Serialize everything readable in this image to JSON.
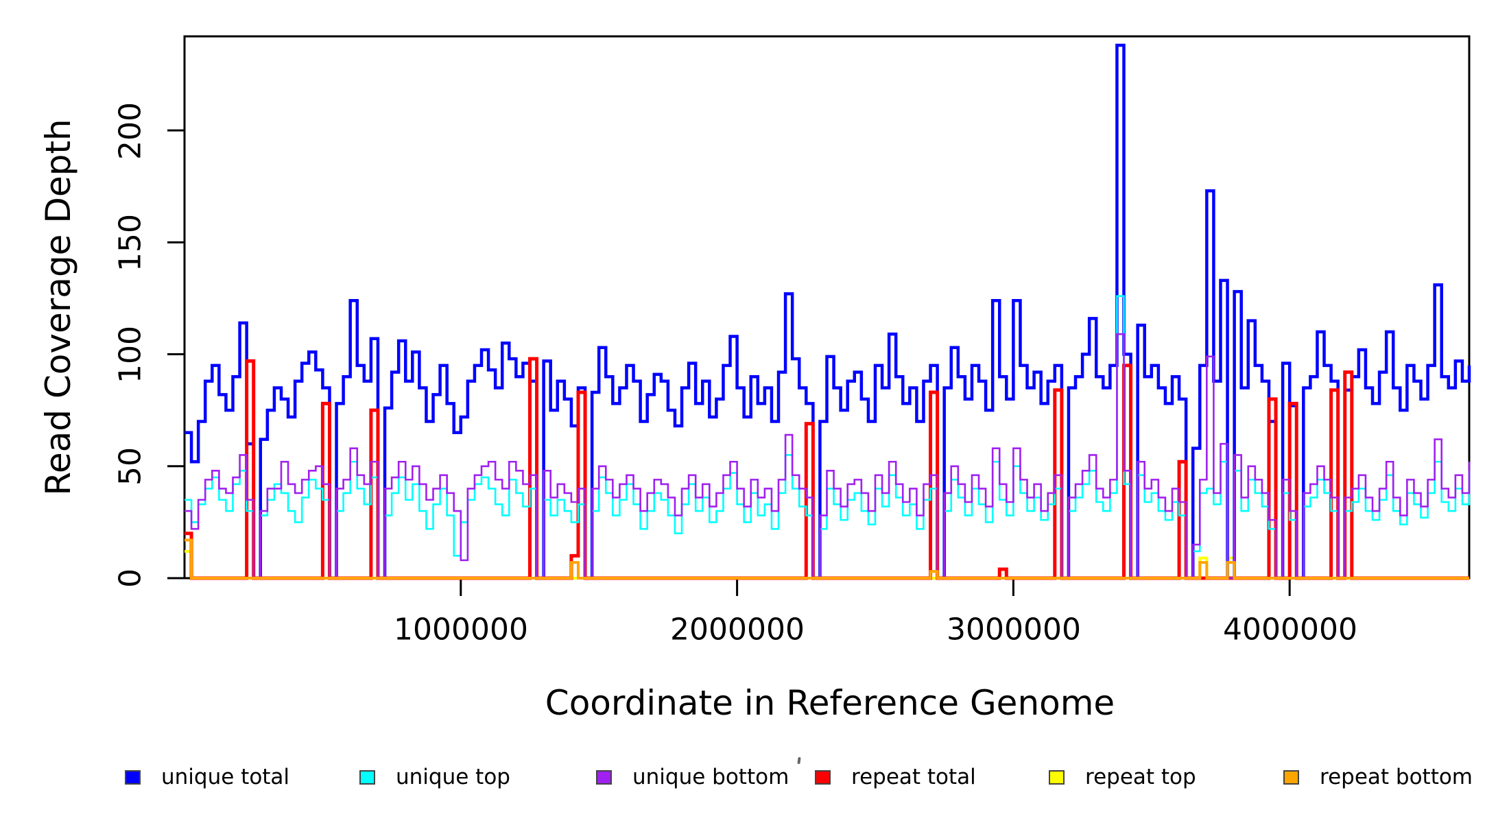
{
  "chart_data": {
    "type": "line",
    "subtype": "step-coverage-plot",
    "title": "",
    "xlabel": "Coordinate in Reference Genome",
    "ylabel": "Read Coverage Depth",
    "xlim": [
      0,
      4650000
    ],
    "ylim": [
      0,
      242
    ],
    "x_step": 25000,
    "grid": "off",
    "legend_position": "bottom",
    "x_ticks": [
      1000000,
      2000000,
      3000000,
      4000000
    ],
    "x_tick_labels": [
      "1000000",
      "2000000",
      "3000000",
      "4000000"
    ],
    "y_ticks": [
      0,
      50,
      100,
      150,
      200
    ],
    "y_tick_labels": [
      "0",
      "50",
      "100",
      "150",
      "200"
    ],
    "draw_order": [
      "repeat top",
      "unique total",
      "repeat total",
      "unique top",
      "unique bottom",
      "repeat bottom"
    ],
    "series": [
      {
        "name": "unique total",
        "color": "#0000ff",
        "width": 4.5,
        "values": [
          65,
          52,
          70,
          88,
          95,
          82,
          75,
          90,
          114,
          60,
          0,
          62,
          75,
          85,
          80,
          72,
          88,
          96,
          101,
          93,
          85,
          0,
          78,
          90,
          124,
          95,
          88,
          107,
          0,
          76,
          92,
          106,
          88,
          101,
          85,
          70,
          82,
          95,
          78,
          65,
          72,
          88,
          95,
          102,
          93,
          85,
          105,
          98,
          90,
          96,
          88,
          0,
          97,
          75,
          88,
          80,
          68,
          85,
          0,
          83,
          103,
          90,
          78,
          85,
          95,
          88,
          70,
          82,
          91,
          88,
          75,
          68,
          85,
          96,
          78,
          88,
          72,
          80,
          95,
          108,
          85,
          72,
          90,
          78,
          85,
          70,
          92,
          127,
          98,
          85,
          78,
          0,
          70,
          99,
          85,
          75,
          88,
          92,
          80,
          70,
          95,
          85,
          109,
          90,
          78,
          85,
          70,
          88,
          95,
          0,
          85,
          103,
          90,
          80,
          95,
          88,
          75,
          124,
          90,
          80,
          124,
          95,
          85,
          92,
          78,
          88,
          95,
          0,
          85,
          90,
          100,
          116,
          90,
          85,
          95,
          238,
          100,
          0,
          113,
          90,
          95,
          85,
          78,
          90,
          80,
          0,
          58,
          95,
          173,
          88,
          133,
          0,
          128,
          85,
          115,
          95,
          88,
          70,
          0,
          96,
          77,
          0,
          85,
          90,
          110,
          95,
          88,
          0,
          84,
          90,
          102,
          85,
          78,
          92,
          110,
          85,
          75,
          95,
          88,
          80,
          95,
          131,
          90,
          85,
          97,
          88,
          95
        ]
      },
      {
        "name": "unique top",
        "color": "#00ffff",
        "width": 2.6,
        "values": [
          35,
          25,
          33,
          40,
          45,
          35,
          30,
          42,
          48,
          30,
          0,
          28,
          35,
          42,
          38,
          30,
          25,
          36,
          44,
          40,
          35,
          0,
          30,
          38,
          52,
          40,
          33,
          45,
          0,
          28,
          38,
          45,
          35,
          42,
          30,
          22,
          33,
          40,
          28,
          10,
          25,
          35,
          42,
          45,
          40,
          33,
          28,
          44,
          38,
          32,
          40,
          0,
          35,
          28,
          35,
          30,
          25,
          33,
          0,
          30,
          45,
          38,
          28,
          35,
          42,
          33,
          22,
          30,
          38,
          35,
          28,
          20,
          33,
          42,
          30,
          36,
          25,
          30,
          40,
          47,
          33,
          25,
          38,
          28,
          33,
          22,
          38,
          55,
          40,
          32,
          28,
          0,
          22,
          40,
          33,
          26,
          35,
          38,
          30,
          24,
          40,
          32,
          46,
          36,
          28,
          33,
          22,
          35,
          40,
          0,
          30,
          44,
          36,
          28,
          40,
          33,
          25,
          52,
          35,
          28,
          50,
          38,
          30,
          36,
          26,
          33,
          40,
          0,
          30,
          36,
          42,
          48,
          34,
          30,
          38,
          126,
          42,
          0,
          46,
          34,
          38,
          30,
          26,
          34,
          28,
          0,
          12,
          38,
          40,
          33,
          52,
          0,
          48,
          30,
          44,
          38,
          32,
          22,
          0,
          38,
          26,
          0,
          32,
          36,
          44,
          38,
          30,
          0,
          30,
          34,
          40,
          30,
          26,
          35,
          46,
          30,
          24,
          38,
          33,
          27,
          38,
          52,
          34,
          30,
          40,
          33,
          48
        ]
      },
      {
        "name": "unique bottom",
        "color": "#a020f0",
        "width": 2.6,
        "values": [
          30,
          22,
          35,
          44,
          48,
          40,
          38,
          45,
          55,
          35,
          0,
          30,
          40,
          40,
          52,
          42,
          38,
          44,
          48,
          50,
          42,
          0,
          40,
          44,
          58,
          46,
          42,
          52,
          0,
          40,
          45,
          52,
          44,
          50,
          42,
          35,
          40,
          46,
          38,
          30,
          8,
          40,
          46,
          50,
          52,
          44,
          40,
          52,
          48,
          42,
          46,
          0,
          48,
          36,
          42,
          38,
          34,
          40,
          0,
          40,
          50,
          44,
          36,
          42,
          46,
          40,
          30,
          38,
          44,
          42,
          36,
          28,
          40,
          46,
          36,
          42,
          32,
          38,
          46,
          52,
          40,
          32,
          44,
          36,
          40,
          30,
          44,
          64,
          46,
          40,
          36,
          0,
          28,
          48,
          40,
          32,
          42,
          44,
          38,
          30,
          46,
          38,
          52,
          42,
          34,
          40,
          28,
          42,
          46,
          0,
          38,
          50,
          42,
          34,
          46,
          40,
          32,
          58,
          42,
          34,
          58,
          44,
          36,
          42,
          30,
          38,
          46,
          0,
          36,
          42,
          48,
          55,
          40,
          36,
          44,
          109,
          48,
          0,
          52,
          40,
          44,
          36,
          30,
          40,
          34,
          0,
          15,
          44,
          99,
          38,
          60,
          0,
          55,
          36,
          50,
          44,
          38,
          26,
          0,
          44,
          30,
          0,
          38,
          42,
          50,
          44,
          36,
          0,
          36,
          40,
          46,
          36,
          30,
          40,
          52,
          36,
          28,
          44,
          38,
          32,
          44,
          62,
          40,
          36,
          46,
          38,
          52
        ]
      },
      {
        "name": "repeat total",
        "color": "#ff0000",
        "width": 5,
        "values": [
          20,
          0,
          0,
          0,
          0,
          0,
          0,
          0,
          0,
          97,
          0,
          0,
          0,
          0,
          0,
          0,
          0,
          0,
          0,
          0,
          78,
          0,
          0,
          0,
          0,
          0,
          0,
          75,
          0,
          0,
          0,
          0,
          0,
          0,
          0,
          0,
          0,
          0,
          0,
          0,
          0,
          0,
          0,
          0,
          0,
          0,
          0,
          0,
          0,
          0,
          98,
          0,
          0,
          0,
          0,
          0,
          10,
          83,
          0,
          0,
          0,
          0,
          0,
          0,
          0,
          0,
          0,
          0,
          0,
          0,
          0,
          0,
          0,
          0,
          0,
          0,
          0,
          0,
          0,
          0,
          0,
          0,
          0,
          0,
          0,
          0,
          0,
          0,
          0,
          0,
          69,
          0,
          0,
          0,
          0,
          0,
          0,
          0,
          0,
          0,
          0,
          0,
          0,
          0,
          0,
          0,
          0,
          0,
          83,
          0,
          0,
          0,
          0,
          0,
          0,
          0,
          0,
          0,
          4,
          0,
          0,
          0,
          0,
          0,
          0,
          0,
          84,
          0,
          0,
          0,
          0,
          0,
          0,
          0,
          0,
          0,
          95,
          0,
          0,
          0,
          0,
          0,
          0,
          0,
          52,
          0,
          0,
          0,
          0,
          0,
          0,
          0,
          0,
          0,
          0,
          0,
          0,
          80,
          0,
          0,
          78,
          0,
          0,
          0,
          0,
          0,
          84,
          0,
          92,
          0,
          0,
          0,
          0,
          0,
          0,
          0,
          0,
          0,
          0,
          0,
          0,
          0,
          0,
          0,
          0,
          0,
          0
        ]
      },
      {
        "name": "repeat top",
        "color": "#ffff00",
        "width": 4,
        "values": [
          12,
          0,
          0,
          0,
          0,
          0,
          0,
          0,
          0,
          0,
          0,
          0,
          0,
          0,
          0,
          0,
          0,
          0,
          0,
          0,
          0,
          0,
          0,
          0,
          0,
          0,
          0,
          0,
          0,
          0,
          0,
          0,
          0,
          0,
          0,
          0,
          0,
          0,
          0,
          0,
          0,
          0,
          0,
          0,
          0,
          0,
          0,
          0,
          0,
          0,
          0,
          0,
          0,
          0,
          0,
          0,
          0,
          0,
          0,
          0,
          0,
          0,
          0,
          0,
          0,
          0,
          0,
          0,
          0,
          0,
          0,
          0,
          0,
          0,
          0,
          0,
          0,
          0,
          0,
          0,
          0,
          0,
          0,
          0,
          0,
          0,
          0,
          0,
          0,
          0,
          0,
          0,
          0,
          0,
          0,
          0,
          0,
          0,
          0,
          0,
          0,
          0,
          0,
          0,
          0,
          0,
          0,
          0,
          0,
          0,
          0,
          0,
          0,
          0,
          0,
          0,
          0,
          0,
          0,
          0,
          0,
          0,
          0,
          0,
          0,
          0,
          0,
          0,
          0,
          0,
          0,
          0,
          0,
          0,
          0,
          0,
          0,
          0,
          0,
          0,
          0,
          0,
          0,
          0,
          0,
          0,
          0,
          9,
          0,
          0,
          0,
          9,
          0,
          0,
          0,
          0,
          0,
          0,
          0,
          0,
          0,
          0,
          0,
          0,
          0,
          0,
          0,
          0,
          0,
          0,
          0,
          0,
          0,
          0,
          0,
          0,
          0,
          0,
          0,
          0,
          0,
          0,
          0,
          0,
          0,
          0,
          0
        ]
      },
      {
        "name": "repeat bottom",
        "color": "#ffa500",
        "width": 4,
        "values": [
          17,
          0,
          0,
          0,
          0,
          0,
          0,
          0,
          0,
          0,
          0,
          0,
          0,
          0,
          0,
          0,
          0,
          0,
          0,
          0,
          0,
          0,
          0,
          0,
          0,
          0,
          0,
          0,
          0,
          0,
          0,
          0,
          0,
          0,
          0,
          0,
          0,
          0,
          0,
          0,
          0,
          0,
          0,
          0,
          0,
          0,
          0,
          0,
          0,
          0,
          0,
          0,
          0,
          0,
          0,
          0,
          7,
          0,
          0,
          0,
          0,
          0,
          0,
          0,
          0,
          0,
          0,
          0,
          0,
          0,
          0,
          0,
          0,
          0,
          0,
          0,
          0,
          0,
          0,
          0,
          0,
          0,
          0,
          0,
          0,
          0,
          0,
          0,
          0,
          0,
          0,
          0,
          0,
          0,
          0,
          0,
          0,
          0,
          0,
          0,
          0,
          0,
          0,
          0,
          0,
          0,
          0,
          0,
          3,
          0,
          0,
          0,
          0,
          0,
          0,
          0,
          0,
          0,
          0,
          0,
          0,
          0,
          0,
          0,
          0,
          0,
          0,
          0,
          0,
          0,
          0,
          0,
          0,
          0,
          0,
          0,
          0,
          0,
          0,
          0,
          0,
          0,
          0,
          0,
          0,
          0,
          0,
          7,
          0,
          0,
          0,
          7,
          0,
          0,
          0,
          0,
          0,
          0,
          0,
          0,
          0,
          0,
          0,
          0,
          0,
          0,
          0,
          0,
          0,
          0,
          0,
          0,
          0,
          0,
          0,
          0,
          0,
          0,
          0,
          0,
          0,
          0,
          0,
          0,
          0,
          0,
          0
        ]
      }
    ],
    "legend": {
      "items": [
        {
          "label": "unique total",
          "color": "#0000ff"
        },
        {
          "label": "unique top",
          "color": "#00ffff"
        },
        {
          "label": "unique bottom",
          "color": "#a020f0"
        },
        {
          "label": "repeat total",
          "color": "#ff0000"
        },
        {
          "label": "repeat top",
          "color": "#ffff00"
        },
        {
          "label": "repeat bottom",
          "color": "#ffa500"
        }
      ]
    }
  }
}
